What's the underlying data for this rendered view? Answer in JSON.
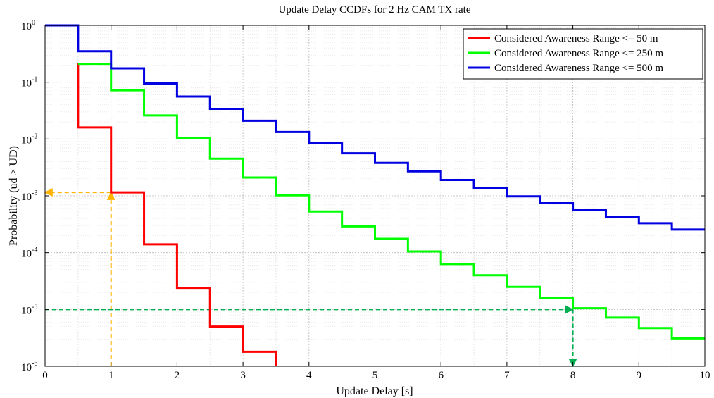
{
  "chart_data": {
    "type": "line",
    "step": true,
    "title": "Update Delay CCDFs for 2 Hz CAM TX rate",
    "xlabel": "Update Delay [s]",
    "ylabel": "Probability (ud > UD)",
    "xlim": [
      0,
      10
    ],
    "ylim": [
      1e-06,
      1
    ],
    "yscale": "log",
    "grid": true,
    "legend_position": "top-right",
    "x_ticks": [
      "0",
      "1",
      "2",
      "3",
      "4",
      "5",
      "6",
      "7",
      "8",
      "9",
      "10"
    ],
    "y_ticks": [
      {
        "base": "10",
        "exp": "0"
      },
      {
        "base": "10",
        "exp": "-1"
      },
      {
        "base": "10",
        "exp": "-2"
      },
      {
        "base": "10",
        "exp": "-3"
      },
      {
        "base": "10",
        "exp": "-4"
      },
      {
        "base": "10",
        "exp": "-5"
      },
      {
        "base": "10",
        "exp": "-6"
      }
    ],
    "series": [
      {
        "name": "Considered Awareness Range <= 50 m",
        "color": "#ff0000",
        "x": [
          0.5,
          0.5,
          1.0,
          1.0,
          1.5,
          1.5,
          2.0,
          2.0,
          2.5,
          2.5,
          3.0,
          3.0,
          3.5,
          3.5
        ],
        "y": [
          0.22,
          0.016,
          0.016,
          0.00115,
          0.00115,
          0.00014,
          0.00014,
          2.4e-05,
          2.4e-05,
          5e-06,
          5e-06,
          1.8e-06,
          1.8e-06,
          1e-06
        ]
      },
      {
        "name": "Considered Awareness Range <= 250 m",
        "color": "#00ff00",
        "x": [
          0.5,
          1.0,
          1.0,
          1.5,
          1.5,
          2.0,
          2.0,
          2.5,
          2.5,
          3.0,
          3.0,
          3.5,
          3.5,
          4.0,
          4.0,
          4.5,
          4.5,
          5.0,
          5.0,
          5.5,
          5.5,
          6.0,
          6.0,
          6.5,
          6.5,
          7.0,
          7.0,
          7.5,
          7.5,
          8.0,
          8.0,
          8.5,
          8.5,
          9.0,
          9.0,
          9.5,
          9.5,
          10.0
        ],
        "y": [
          0.21,
          0.21,
          0.072,
          0.072,
          0.026,
          0.026,
          0.0105,
          0.0105,
          0.0045,
          0.0045,
          0.0021,
          0.0021,
          0.00102,
          0.00102,
          0.00053,
          0.00053,
          0.00029,
          0.00029,
          0.000175,
          0.000175,
          0.000105,
          0.000105,
          6.3e-05,
          6.3e-05,
          4e-05,
          4e-05,
          2.5e-05,
          2.5e-05,
          1.6e-05,
          1.6e-05,
          1.05e-05,
          1.05e-05,
          7.2e-06,
          7.2e-06,
          4.7e-06,
          4.7e-06,
          3.1e-06,
          3.1e-06
        ]
      },
      {
        "name": "Considered Awareness Range <= 500 m",
        "color": "#0000e0",
        "x": [
          0.0,
          0.5,
          0.5,
          1.0,
          1.0,
          1.5,
          1.5,
          2.0,
          2.0,
          2.5,
          2.5,
          3.0,
          3.0,
          3.5,
          3.5,
          4.0,
          4.0,
          4.5,
          4.5,
          5.0,
          5.0,
          5.5,
          5.5,
          6.0,
          6.0,
          6.5,
          6.5,
          7.0,
          7.0,
          7.5,
          7.5,
          8.0,
          8.0,
          8.5,
          8.5,
          9.0,
          9.0,
          9.5,
          9.5,
          10.0
        ],
        "y": [
          1.0,
          1.0,
          0.35,
          0.35,
          0.175,
          0.175,
          0.095,
          0.095,
          0.056,
          0.056,
          0.034,
          0.034,
          0.021,
          0.021,
          0.0133,
          0.0133,
          0.0086,
          0.0086,
          0.0056,
          0.0056,
          0.0038,
          0.0038,
          0.0027,
          0.0027,
          0.0019,
          0.0019,
          0.00135,
          0.00135,
          0.00098,
          0.00098,
          0.00074,
          0.00074,
          0.00056,
          0.00056,
          0.00043,
          0.00043,
          0.00033,
          0.00033,
          0.000255,
          0.000255
        ]
      }
    ],
    "annotations": [
      {
        "color": "#ffb400",
        "paths": [
          {
            "points": [
              [
                1.0,
                1e-06
              ],
              [
                1.0,
                0.00115
              ]
            ],
            "arrow": "end"
          },
          {
            "points": [
              [
                1.0,
                0.00115
              ],
              [
                0.0,
                0.00115
              ]
            ],
            "arrow": "end"
          }
        ]
      },
      {
        "color": "#00b050",
        "paths": [
          {
            "points": [
              [
                0.0,
                1e-05
              ],
              [
                8.0,
                1e-05
              ]
            ],
            "arrow": "end"
          },
          {
            "points": [
              [
                8.0,
                1e-05
              ],
              [
                8.0,
                1e-06
              ]
            ],
            "arrow": "end"
          }
        ]
      }
    ]
  }
}
